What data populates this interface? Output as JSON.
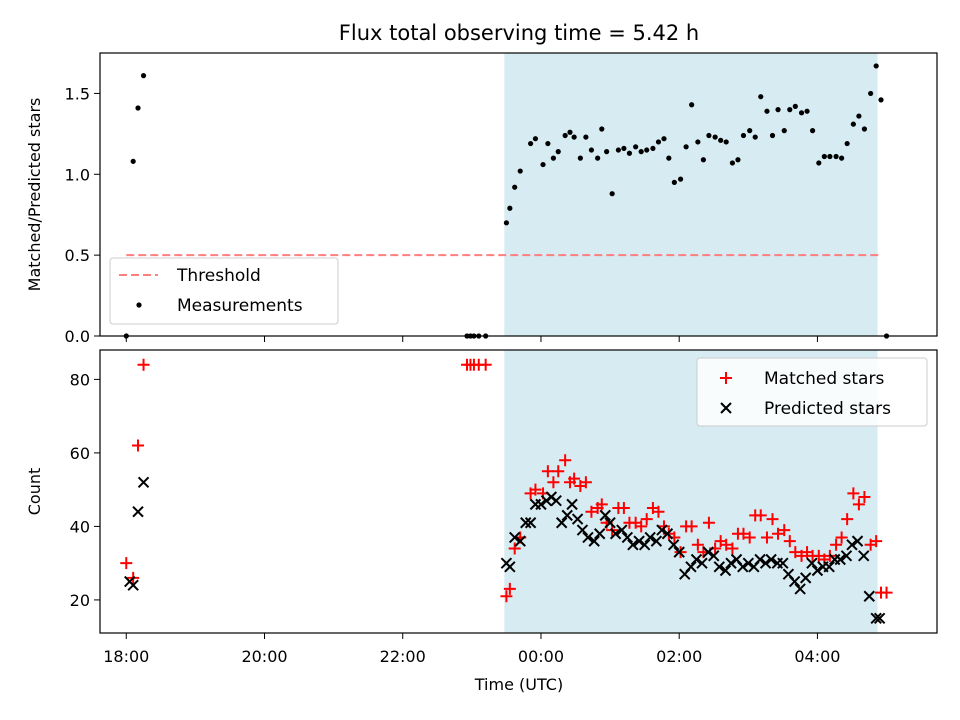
{
  "title": "Flux total observing time = 5.42 h",
  "xlabel": "Time (UTC)",
  "x_ticks": [
    {
      "label": "18:00",
      "t": 18.0
    },
    {
      "label": "20:00",
      "t": 20.0
    },
    {
      "label": "22:00",
      "t": 22.0
    },
    {
      "label": "00:00",
      "t": 24.0
    },
    {
      "label": "02:00",
      "t": 26.0
    },
    {
      "label": "04:00",
      "t": 28.0
    }
  ],
  "colors": {
    "threshold": "#ff7f7f",
    "measurements": "#000000",
    "matched": "#ff0000",
    "predicted": "#000000",
    "span": "#add8e6"
  },
  "chart_data": [
    {
      "type": "scatter",
      "ylabel": "Matched/Predicted stars",
      "xlim": [
        17.62,
        29.73
      ],
      "ylim": [
        0,
        1.75
      ],
      "y_ticks": [
        "0.0",
        "0.5",
        "1.0",
        "1.5"
      ],
      "y_tick_values": [
        0.0,
        0.5,
        1.0,
        1.5
      ],
      "shaded_span": [
        23.47,
        28.87
      ],
      "threshold": {
        "name": "Threshold",
        "y": 0.5,
        "x": [
          18.0,
          28.9
        ]
      },
      "legend": [
        "Threshold",
        "Measurements"
      ],
      "legend_position": "lower left",
      "series": [
        {
          "name": "Measurements",
          "x": [
            18.0,
            18.1,
            18.17,
            18.25,
            22.93,
            22.98,
            23.03,
            23.1,
            23.2,
            23.5,
            23.55,
            23.62,
            23.7,
            23.85,
            23.92,
            24.03,
            24.1,
            24.18,
            24.25,
            24.35,
            24.42,
            24.48,
            24.57,
            24.65,
            24.73,
            24.82,
            24.88,
            24.95,
            25.03,
            25.12,
            25.2,
            25.28,
            25.37,
            25.45,
            25.53,
            25.62,
            25.7,
            25.78,
            25.85,
            25.93,
            26.02,
            26.1,
            26.18,
            26.27,
            26.35,
            26.43,
            26.52,
            26.6,
            26.68,
            26.77,
            26.85,
            26.93,
            27.02,
            27.1,
            27.18,
            27.27,
            27.35,
            27.43,
            27.52,
            27.6,
            27.68,
            27.77,
            27.85,
            27.93,
            28.02,
            28.1,
            28.18,
            28.27,
            28.35,
            28.43,
            28.52,
            28.6,
            28.68,
            28.77,
            28.85,
            28.92,
            29.0
          ],
          "y": [
            0.0,
            1.08,
            1.41,
            1.61,
            0.0,
            0.0,
            0.0,
            0.0,
            0.0,
            0.7,
            0.79,
            0.92,
            1.02,
            1.19,
            1.22,
            1.06,
            1.19,
            1.1,
            1.14,
            1.24,
            1.26,
            1.23,
            1.1,
            1.23,
            1.15,
            1.1,
            1.28,
            1.14,
            0.88,
            1.15,
            1.16,
            1.13,
            1.17,
            1.14,
            1.15,
            1.16,
            1.2,
            1.22,
            1.1,
            0.95,
            0.97,
            1.17,
            1.43,
            1.2,
            1.09,
            1.24,
            1.23,
            1.21,
            1.2,
            1.07,
            1.09,
            1.24,
            1.27,
            1.23,
            1.48,
            1.39,
            1.24,
            1.4,
            1.27,
            1.4,
            1.42,
            1.38,
            1.39,
            1.27,
            1.07,
            1.11,
            1.11,
            1.11,
            1.1,
            1.19,
            1.31,
            1.36,
            1.28,
            1.5,
            1.67,
            1.46,
            0.0
          ]
        }
      ]
    },
    {
      "type": "scatter",
      "ylabel": "Count",
      "xlim": [
        17.62,
        29.73
      ],
      "ylim": [
        11,
        88
      ],
      "y_ticks": [
        "20",
        "40",
        "60",
        "80"
      ],
      "y_tick_values": [
        20,
        40,
        60,
        80
      ],
      "shaded_span": [
        23.47,
        28.87
      ],
      "legend": [
        "Matched stars",
        "Predicted stars"
      ],
      "legend_position": "upper right",
      "series": [
        {
          "name": "Matched stars",
          "marker": "plus",
          "x": [
            18.0,
            18.1,
            18.17,
            18.25,
            22.93,
            22.98,
            23.03,
            23.1,
            23.2,
            23.5,
            23.55,
            23.62,
            23.7,
            23.85,
            23.92,
            24.03,
            24.1,
            24.18,
            24.25,
            24.35,
            24.42,
            24.48,
            24.57,
            24.65,
            24.73,
            24.82,
            24.88,
            24.95,
            25.03,
            25.12,
            25.2,
            25.28,
            25.37,
            25.45,
            25.53,
            25.62,
            25.7,
            25.78,
            25.85,
            25.93,
            26.02,
            26.1,
            26.18,
            26.27,
            26.35,
            26.43,
            26.52,
            26.6,
            26.68,
            26.77,
            26.85,
            26.93,
            27.02,
            27.1,
            27.18,
            27.27,
            27.35,
            27.43,
            27.52,
            27.6,
            27.68,
            27.77,
            27.85,
            27.93,
            28.02,
            28.1,
            28.18,
            28.27,
            28.35,
            28.43,
            28.52,
            28.6,
            28.68,
            28.77,
            28.85,
            28.92,
            29.0
          ],
          "y": [
            30,
            26,
            62,
            84,
            84,
            84,
            84,
            84,
            84,
            21,
            23,
            34,
            37,
            49,
            50,
            49,
            55,
            52,
            55,
            58,
            52,
            53,
            51,
            52,
            44,
            45,
            46,
            41,
            39,
            45,
            45,
            41,
            41,
            40,
            42,
            45,
            44,
            40,
            38,
            37,
            33,
            40,
            40,
            35,
            33,
            41,
            34,
            36,
            35,
            34,
            38,
            38,
            37,
            43,
            43,
            37,
            42,
            38,
            39,
            36,
            33,
            32,
            33,
            32,
            32,
            31,
            32,
            35,
            37,
            42,
            49,
            46,
            48,
            35,
            36,
            22,
            22
          ]
        },
        {
          "name": "Predicted stars",
          "marker": "x",
          "x": [
            18.05,
            18.1,
            18.17,
            18.25,
            23.5,
            23.55,
            23.62,
            23.7,
            23.78,
            23.85,
            23.92,
            24.0,
            24.08,
            24.15,
            24.22,
            24.3,
            24.38,
            24.45,
            24.53,
            24.6,
            24.68,
            24.77,
            24.85,
            24.93,
            25.0,
            25.08,
            25.17,
            25.25,
            25.33,
            25.42,
            25.5,
            25.58,
            25.67,
            25.75,
            25.83,
            25.92,
            26.0,
            26.08,
            26.17,
            26.25,
            26.33,
            26.42,
            26.5,
            26.58,
            26.67,
            26.75,
            26.83,
            26.92,
            27.0,
            27.08,
            27.17,
            27.25,
            27.33,
            27.42,
            27.5,
            27.58,
            27.67,
            27.75,
            27.83,
            27.92,
            28.0,
            28.08,
            28.17,
            28.25,
            28.33,
            28.42,
            28.5,
            28.58,
            28.67,
            28.75,
            28.85,
            28.9
          ],
          "y": [
            25,
            24,
            44,
            52,
            30,
            29,
            37,
            36,
            41,
            41,
            46,
            46,
            47,
            48,
            47,
            41,
            43,
            46,
            42,
            39,
            37,
            36,
            38,
            43,
            41,
            38,
            39,
            37,
            35,
            36,
            35,
            37,
            36,
            39,
            38,
            35,
            33,
            27,
            29,
            31,
            30,
            33,
            32,
            29,
            28,
            30,
            31,
            29,
            30,
            29,
            31,
            30,
            31,
            30,
            30,
            27,
            25,
            23,
            26,
            30,
            28,
            29,
            29,
            31,
            31,
            32,
            35,
            36,
            32,
            21,
            15,
            15
          ]
        }
      ]
    }
  ]
}
